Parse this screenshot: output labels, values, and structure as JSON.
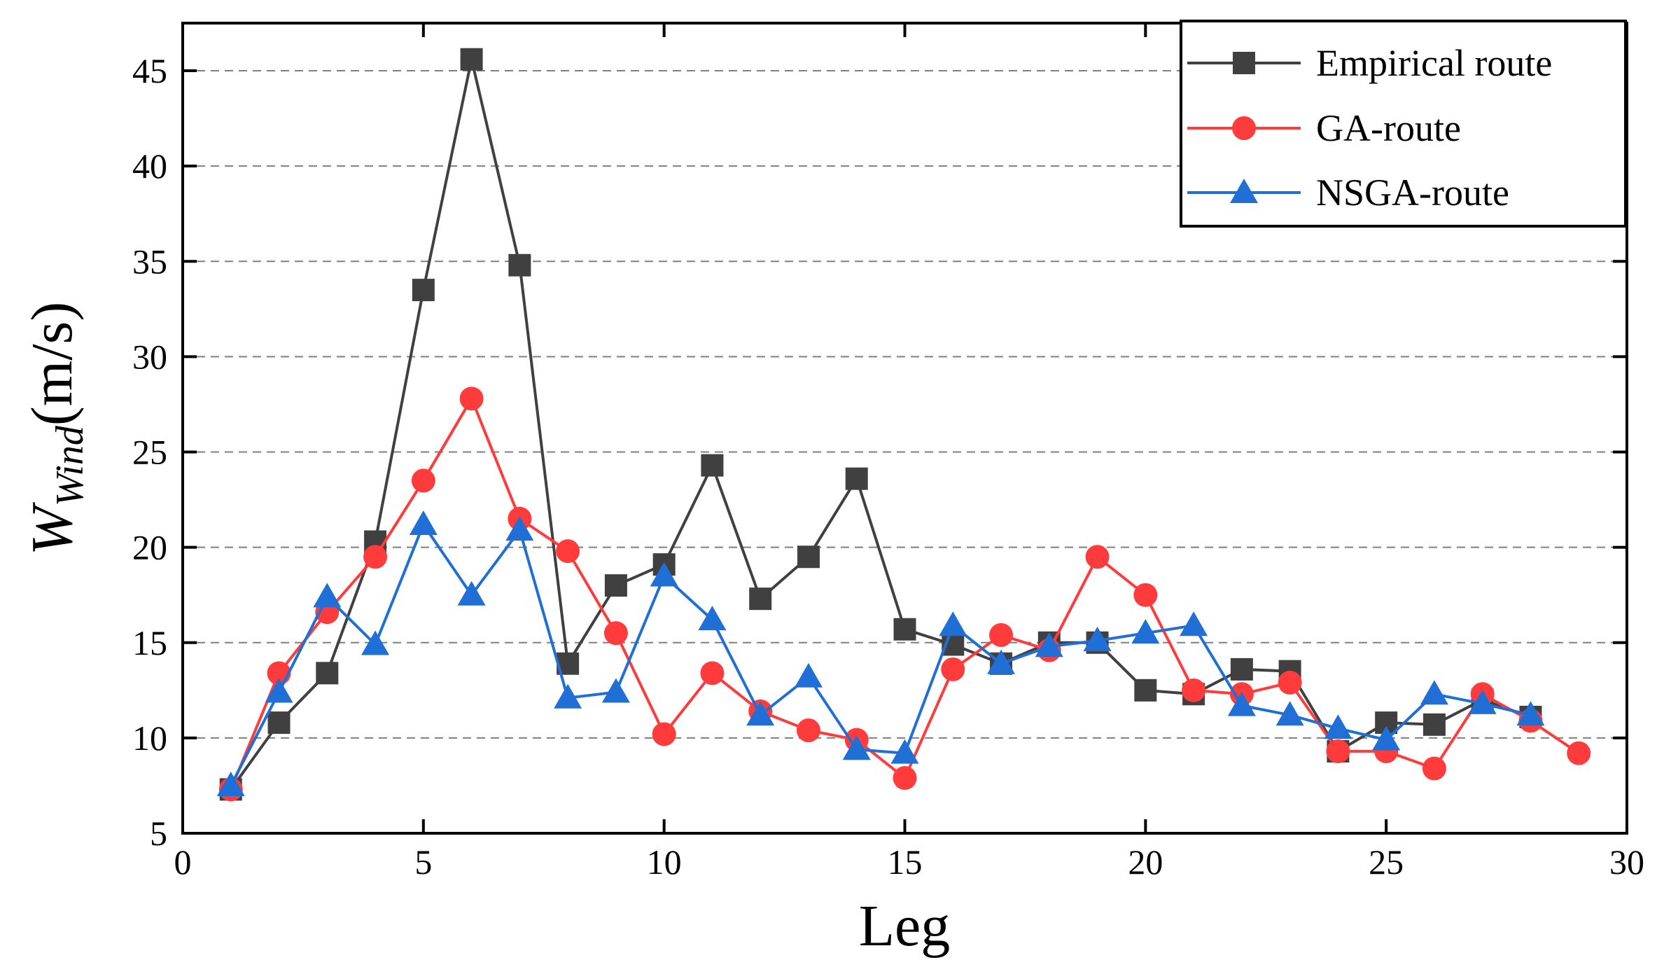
{
  "chart_data": {
    "type": "line",
    "title": "",
    "xlabel": "Leg",
    "ylabel_main": "W",
    "ylabel_sub": "Wind",
    "ylabel_unit": "(m/s)",
    "xlim": [
      0,
      30
    ],
    "ylim": [
      5,
      47.5
    ],
    "xticks": [
      0,
      5,
      10,
      15,
      20,
      25,
      30
    ],
    "yticks": [
      5,
      10,
      15,
      20,
      25,
      30,
      35,
      40,
      45
    ],
    "grid": "horizontal dashed",
    "legend_position": "top-right",
    "series": [
      {
        "name": "Empirical route",
        "color": "#404040",
        "marker": "square",
        "x": [
          1,
          2,
          3,
          4,
          5,
          6,
          7,
          8,
          9,
          10,
          11,
          12,
          13,
          14,
          15,
          16,
          17,
          18,
          19,
          20,
          21,
          22,
          23,
          24,
          25,
          26,
          27,
          28
        ],
        "y": [
          7.3,
          10.8,
          13.4,
          20.3,
          33.5,
          45.6,
          34.8,
          13.9,
          18.0,
          19.1,
          24.3,
          17.3,
          19.5,
          23.6,
          15.7,
          14.9,
          13.9,
          15.0,
          15.0,
          12.5,
          12.3,
          13.6,
          13.5,
          9.3,
          10.8,
          10.7,
          12.0,
          11.1
        ]
      },
      {
        "name": "GA-route",
        "color": "#ff3b3b",
        "marker": "circle",
        "x": [
          1,
          2,
          3,
          4,
          5,
          6,
          7,
          8,
          9,
          10,
          11,
          12,
          13,
          14,
          15,
          16,
          17,
          18,
          19,
          20,
          21,
          22,
          23,
          24,
          25,
          26,
          27,
          28,
          29
        ],
        "y": [
          7.3,
          13.4,
          16.6,
          19.5,
          23.5,
          27.8,
          21.5,
          19.8,
          15.5,
          10.2,
          13.4,
          11.4,
          10.4,
          9.9,
          7.9,
          13.6,
          15.4,
          14.6,
          19.5,
          17.5,
          12.5,
          12.3,
          12.9,
          9.3,
          9.3,
          8.4,
          12.3,
          10.9,
          9.2
        ]
      },
      {
        "name": "NSGA-route",
        "color": "#1f6fd6",
        "marker": "triangle",
        "x": [
          1,
          2,
          3,
          4,
          5,
          6,
          7,
          8,
          9,
          10,
          11,
          12,
          13,
          14,
          15,
          16,
          17,
          18,
          19,
          20,
          21,
          22,
          23,
          24,
          25,
          26,
          27,
          28
        ],
        "y": [
          7.5,
          12.4,
          17.4,
          14.9,
          21.2,
          17.5,
          20.9,
          12.1,
          12.4,
          18.5,
          16.2,
          11.2,
          13.2,
          9.4,
          9.2,
          15.9,
          13.9,
          14.8,
          15.1,
          15.5,
          15.9,
          11.7,
          11.2,
          10.5,
          9.9,
          12.3,
          11.8,
          11.2
        ]
      }
    ]
  }
}
